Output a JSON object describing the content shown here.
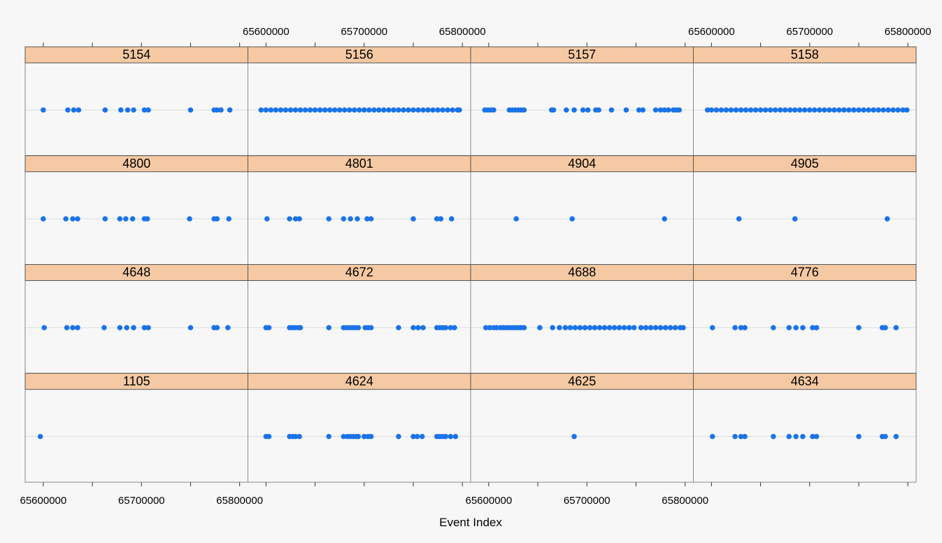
{
  "chart_data": {
    "type": "scatter",
    "layout": "lattice dot strip plots, 4 columns x 4 rows",
    "xlabel": "Event Index",
    "xlim": [
      65583000,
      65807000
    ],
    "x_ticks": [
      65600000,
      65650000,
      65700000,
      65750000,
      65800000
    ],
    "x_tick_labels": [
      "65600000",
      "",
      "65700000",
      "",
      "65800000"
    ],
    "tick_label_placement": "alternating top and bottom per column",
    "grid": false,
    "strip_color": "#f5c9a3",
    "point_color": "#1a73e8",
    "panels": [
      {
        "label": "5154",
        "x": [
          65600000,
          65625000,
          65631000,
          65636000,
          65663000,
          65679000,
          65686000,
          65692000,
          65703000,
          65707000,
          65750000,
          65774000,
          65777000,
          65781000,
          65790000
        ]
      },
      {
        "label": "5156",
        "x": [
          65595000,
          65600000,
          65605000,
          65610000,
          65615000,
          65620000,
          65625000,
          65630000,
          65635000,
          65640000,
          65645000,
          65650000,
          65655000,
          65660000,
          65665000,
          65670000,
          65675000,
          65680000,
          65685000,
          65690000,
          65695000,
          65700000,
          65705000,
          65710000,
          65715000,
          65720000,
          65725000,
          65730000,
          65735000,
          65740000,
          65745000,
          65750000,
          65755000,
          65760000,
          65765000,
          65770000,
          65775000,
          65780000,
          65785000,
          65790000,
          65795000,
          65797000
        ]
      },
      {
        "label": "5157",
        "x": [
          65596000,
          65599000,
          65602000,
          65605000,
          65621000,
          65624000,
          65627000,
          65630000,
          65633000,
          65636000,
          65664000,
          65666000,
          65679000,
          65687000,
          65696000,
          65701000,
          65709000,
          65712000,
          65725000,
          65740000,
          65753000,
          65757000,
          65770000,
          65775000,
          65779000,
          65783000,
          65788000,
          65791000,
          65794000
        ]
      },
      {
        "label": "5158",
        "x": [
          65596000,
          65600000,
          65605000,
          65610000,
          65615000,
          65620000,
          65625000,
          65630000,
          65635000,
          65640000,
          65645000,
          65650000,
          65655000,
          65660000,
          65665000,
          65670000,
          65675000,
          65680000,
          65685000,
          65690000,
          65695000,
          65700000,
          65705000,
          65710000,
          65715000,
          65720000,
          65725000,
          65730000,
          65735000,
          65740000,
          65745000,
          65750000,
          65755000,
          65760000,
          65765000,
          65770000,
          65775000,
          65780000,
          65785000,
          65790000,
          65795000,
          65799000
        ]
      },
      {
        "label": "4800",
        "x": [
          65600000,
          65623000,
          65630000,
          65635000,
          65663000,
          65678000,
          65684000,
          65691000,
          65703000,
          65706000,
          65749000,
          65774000,
          65777000,
          65789000
        ]
      },
      {
        "label": "4801",
        "x": [
          65601000,
          65624000,
          65630000,
          65634000,
          65664000,
          65679000,
          65686000,
          65693000,
          65703000,
          65707000,
          65750000,
          65774000,
          65778000,
          65789000
        ]
      },
      {
        "label": "4904",
        "x": [
          65628000,
          65685000,
          65779000
        ]
      },
      {
        "label": "4905",
        "x": [
          65628000,
          65685000,
          65779000
        ]
      },
      {
        "label": "4648",
        "x": [
          65601000,
          65624000,
          65630000,
          65635000,
          65662000,
          65678000,
          65685000,
          65692000,
          65703000,
          65707000,
          65750000,
          65774000,
          65777000,
          65788000
        ]
      },
      {
        "label": "4672",
        "x": [
          65600000,
          65603000,
          65624000,
          65627000,
          65630000,
          65633000,
          65635000,
          65664000,
          65679000,
          65682000,
          65685000,
          65688000,
          65691000,
          65694000,
          65701000,
          65704000,
          65707000,
          65735000,
          65750000,
          65755000,
          65760000,
          65774000,
          65777000,
          65780000,
          65783000,
          65788000,
          65792000
        ]
      },
      {
        "label": "4688",
        "x": [
          65597000,
          65601000,
          65605000,
          65608000,
          65612000,
          65615000,
          65618000,
          65621000,
          65624000,
          65627000,
          65630000,
          65633000,
          65636000,
          65652000,
          65665000,
          65672000,
          65678000,
          65683000,
          65688000,
          65693000,
          65698000,
          65703000,
          65708000,
          65713000,
          65718000,
          65723000,
          65728000,
          65733000,
          65738000,
          65743000,
          65748000,
          65755000,
          65760000,
          65765000,
          65770000,
          65775000,
          65780000,
          65785000,
          65790000,
          65795000,
          65798000
        ]
      },
      {
        "label": "4776",
        "x": [
          65601000,
          65624000,
          65630000,
          65634000,
          65663000,
          65679000,
          65686000,
          65693000,
          65703000,
          65707000,
          65750000,
          65774000,
          65777000,
          65788000
        ]
      },
      {
        "label": "1105",
        "x": [
          65597000
        ]
      },
      {
        "label": "4624",
        "x": [
          65600000,
          65603000,
          65624000,
          65627000,
          65630000,
          65634000,
          65664000,
          65679000,
          65683000,
          65686000,
          65689000,
          65692000,
          65694000,
          65700000,
          65704000,
          65707000,
          65735000,
          65750000,
          65754000,
          65759000,
          65774000,
          65777000,
          65780000,
          65783000,
          65788000,
          65793000
        ]
      },
      {
        "label": "4625",
        "x": [
          65687000
        ]
      },
      {
        "label": "4634",
        "x": [
          65601000,
          65624000,
          65630000,
          65634000,
          65663000,
          65679000,
          65686000,
          65693000,
          65703000,
          65707000,
          65750000,
          65774000,
          65777000,
          65788000
        ]
      }
    ]
  }
}
